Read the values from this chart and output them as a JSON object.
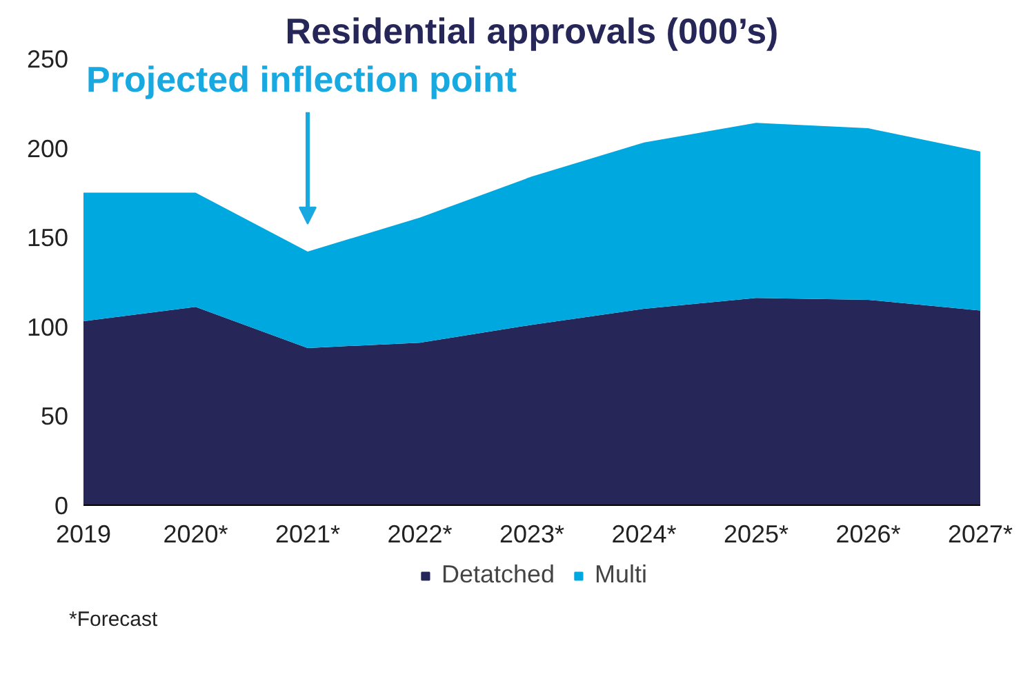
{
  "chart_data": {
    "type": "area",
    "title": "Residential approvals (000’s)",
    "categories": [
      "2019",
      "2020*",
      "2021*",
      "2022*",
      "2023*",
      "2024*",
      "2025*",
      "2026*",
      "2027*"
    ],
    "stacked": true,
    "series": [
      {
        "name": "Detatched",
        "color": "#262659",
        "values": [
          103,
          111,
          88,
          91,
          101,
          110,
          116,
          115,
          109
        ]
      },
      {
        "name": "Multi",
        "color": "#00a8e0",
        "values": [
          72,
          64,
          54,
          70,
          83,
          93,
          98,
          96,
          89
        ]
      }
    ],
    "ylim": [
      0,
      250
    ],
    "yticks": [
      0,
      50,
      100,
      150,
      200,
      250
    ],
    "grid": false,
    "legend": "bottom",
    "annotations": [
      "Projected inflection point",
      "*Forecast"
    ]
  }
}
